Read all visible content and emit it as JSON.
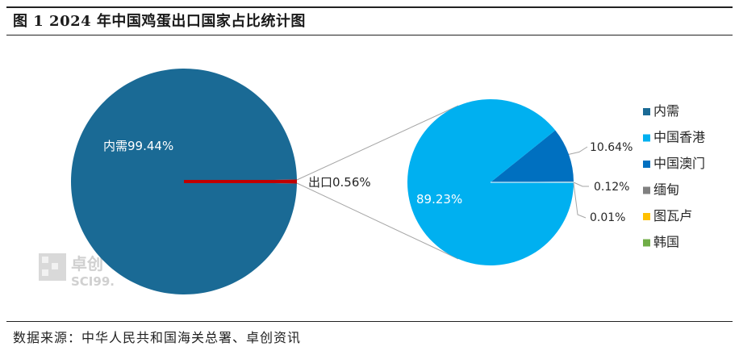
{
  "title": "图 1   2024 年中国鸡蛋出口国家占比统计图",
  "source": "数据来源：中华人民共和国海关总署、卓创资讯",
  "watermark": {
    "brand": "卓创",
    "code": "SCI99."
  },
  "colors": {
    "domestic": "#1a6a95",
    "export_slice": "#c00000",
    "hongkong": "#00b0f0",
    "macau": "#0070c0",
    "myanmar": "#808080",
    "tuvalu": "#ffc000",
    "korea": "#70ad47",
    "connector": "#a6a6a6"
  },
  "chart_data": [
    {
      "type": "pie",
      "title": "",
      "slices": [
        {
          "name": "内需",
          "value": 99.44,
          "label": "内需99.44%",
          "color": "#1a6a95"
        },
        {
          "name": "出口",
          "value": 0.56,
          "label": "出口0.56%",
          "color": "#c00000"
        }
      ]
    },
    {
      "type": "pie",
      "title": "",
      "slices": [
        {
          "name": "中国香港",
          "value": 89.23,
          "label": "89.23%",
          "color": "#00b0f0"
        },
        {
          "name": "中国澳门",
          "value": 10.64,
          "label": "10.64%",
          "color": "#0070c0"
        },
        {
          "name": "缅甸",
          "value": 0.12,
          "label": "0.12%",
          "color": "#808080"
        },
        {
          "name": "图瓦卢",
          "value": 0.01,
          "label": "0.01%",
          "color": "#ffc000"
        },
        {
          "name": "韩国",
          "value": 0.0,
          "label": "",
          "color": "#70ad47"
        }
      ]
    }
  ],
  "legend": {
    "placement": "right",
    "items": [
      {
        "label": "内需",
        "color": "#1a6a95"
      },
      {
        "label": "中国香港",
        "color": "#00b0f0"
      },
      {
        "label": "中国澳门",
        "color": "#0070c0"
      },
      {
        "label": "缅甸",
        "color": "#808080"
      },
      {
        "label": "图瓦卢",
        "color": "#ffc000"
      },
      {
        "label": "韩国",
        "color": "#70ad47"
      }
    ]
  }
}
